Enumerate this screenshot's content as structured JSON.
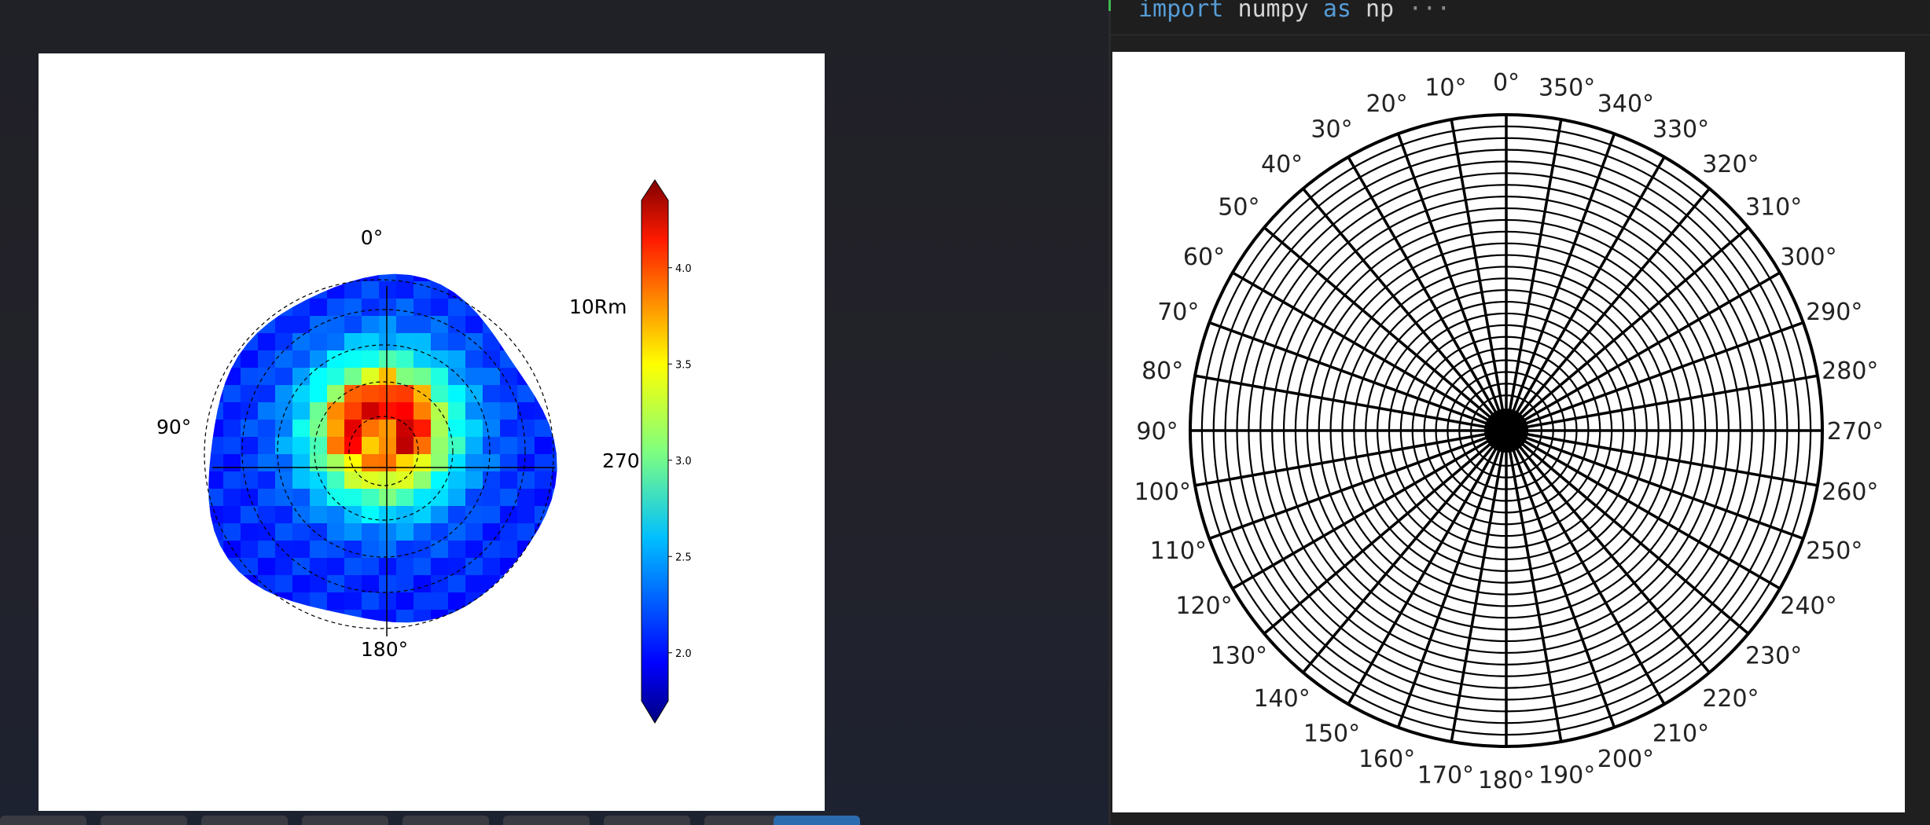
{
  "code": {
    "keyword_import": "import",
    "module": "numpy",
    "keyword_as": "as",
    "alias": "np",
    "fold_marker": "···"
  },
  "left_figure": {
    "angle_labels": {
      "top": "0°",
      "left": "90°",
      "right": "270°",
      "bottom": "180°"
    },
    "radius_label": "10Rm",
    "colorbar": {
      "ticks": [
        "4.0",
        "3.5",
        "3.0",
        "2.5",
        "2.0"
      ],
      "tick_values": [
        4.0,
        3.5,
        3.0,
        2.5,
        2.0
      ],
      "vmin": 1.75,
      "vmax": 4.35,
      "colormap": "jet",
      "extend": "both"
    }
  },
  "right_figure": {
    "angle_labels": [
      "0°",
      "10°",
      "20°",
      "30°",
      "40°",
      "50°",
      "60°",
      "70°",
      "80°",
      "90°",
      "100°",
      "110°",
      "120°",
      "130°",
      "140°",
      "150°",
      "160°",
      "170°",
      "180°",
      "190°",
      "200°",
      "210°",
      "220°",
      "230°",
      "240°",
      "250°",
      "260°",
      "270°",
      "280°",
      "290°",
      "300°",
      "310°",
      "320°",
      "330°",
      "340°",
      "350°"
    ],
    "angle_values": [
      0,
      10,
      20,
      30,
      40,
      50,
      60,
      70,
      80,
      90,
      100,
      110,
      120,
      130,
      140,
      150,
      160,
      170,
      180,
      190,
      200,
      210,
      220,
      230,
      240,
      250,
      260,
      270,
      280,
      290,
      300,
      310,
      320,
      330,
      340,
      350
    ],
    "spokes": 36,
    "rings": 25
  },
  "colors": {
    "editor_bg": "#1f1f1f",
    "keyword": "#569cd6",
    "text": "#d4d4d4",
    "panel": "#ffffff"
  }
}
